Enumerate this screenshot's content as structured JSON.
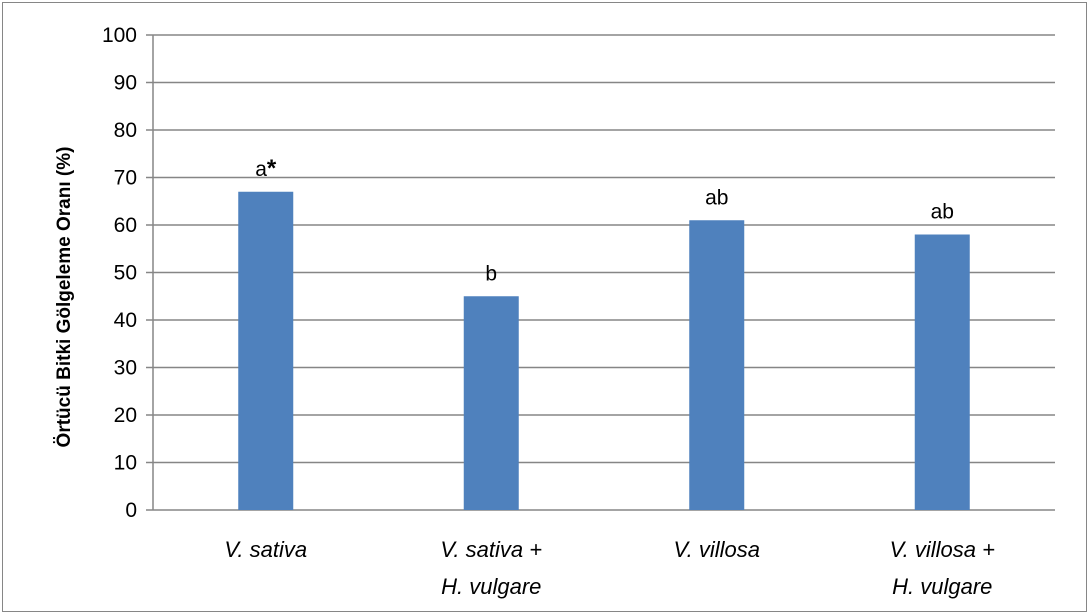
{
  "chart_data": {
    "type": "bar",
    "title": "",
    "xlabel": "",
    "ylabel": "Örtücü Bitki Gölgeleme Oranı (%)",
    "categories": [
      [
        "V. sativa"
      ],
      [
        "V. sativa +",
        "H. vulgare"
      ],
      [
        "V. villosa"
      ],
      [
        "V. villosa +",
        "H. vulgare"
      ]
    ],
    "values": [
      67,
      45,
      61,
      58
    ],
    "data_labels": [
      "a",
      "b",
      "ab",
      "ab"
    ],
    "asterisk_label": "*",
    "ylim": [
      0,
      100
    ],
    "yticks": [
      0,
      10,
      20,
      30,
      40,
      50,
      60,
      70,
      80,
      90,
      100
    ],
    "grid": true,
    "bar_color": "#4f81bd",
    "grid_color": "#868686"
  }
}
